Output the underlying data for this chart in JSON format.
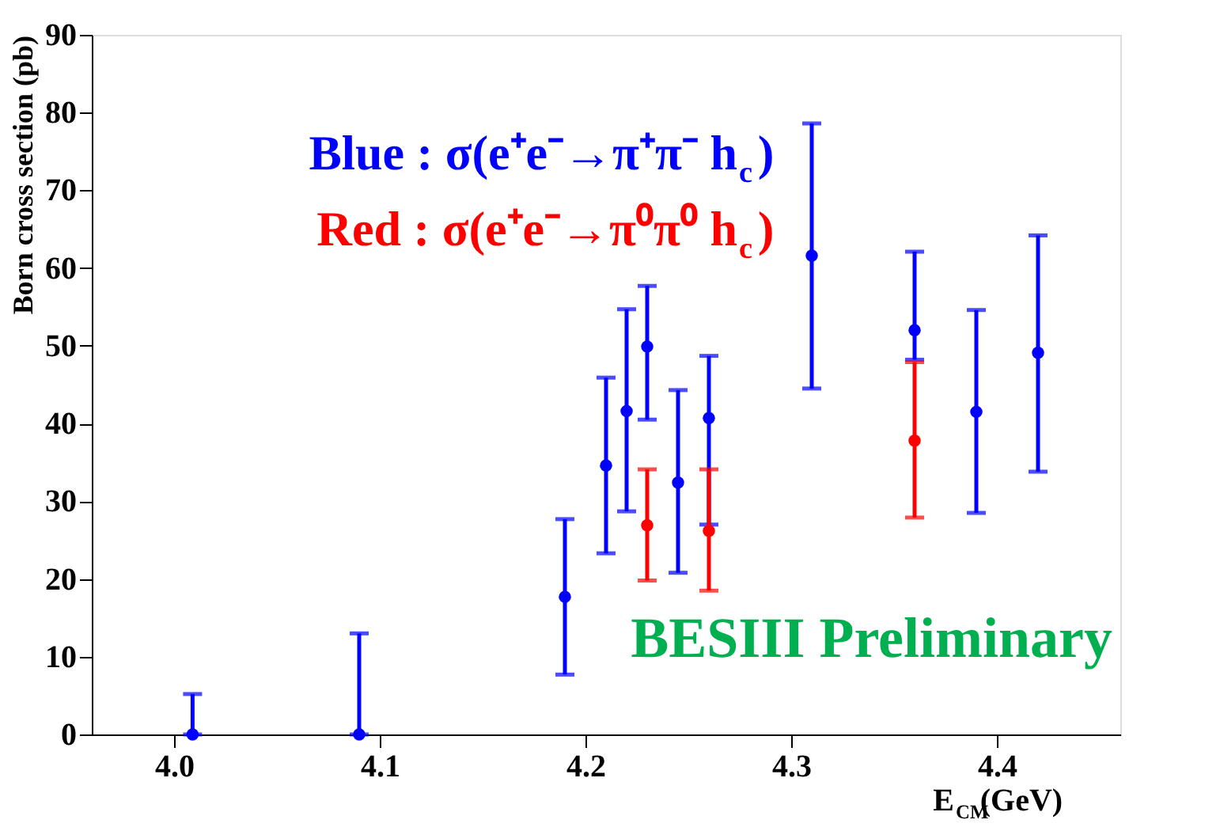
{
  "chart_data": {
    "type": "scatter",
    "xlabel": "E$_{CM}$(GeV)",
    "ylabel": "Born cross section (pb)",
    "xlim": [
      3.96,
      4.46
    ],
    "ylim": [
      0,
      90
    ],
    "xticks": [
      {
        "value": 4.0,
        "label": "4.0"
      },
      {
        "value": 4.1,
        "label": "4.1"
      },
      {
        "value": 4.2,
        "label": "4.2"
      },
      {
        "value": 4.3,
        "label": "4.3"
      },
      {
        "value": 4.4,
        "label": "4.4"
      }
    ],
    "yticks": [
      0,
      10,
      20,
      30,
      40,
      50,
      60,
      70,
      80,
      90
    ],
    "grid": false,
    "legend": "top left",
    "marker": "circle",
    "series": [
      {
        "name": "Blue : σ(e⁺e⁻→π⁺π⁻ h$_{c}$)",
        "color": "#0000ff",
        "x": [
          4.009,
          4.09,
          4.19,
          4.21,
          4.22,
          4.23,
          4.245,
          4.26,
          4.31,
          4.36,
          4.39,
          4.42
        ],
        "values": [
          0,
          0,
          17.7,
          34.6,
          41.6,
          49.9,
          32.4,
          40.7,
          61.6,
          52.0,
          41.5,
          49.1
        ],
        "errors": [
          [
            0,
            5.2
          ],
          [
            0,
            13
          ],
          [
            7.7,
            27.7
          ],
          [
            23.3,
            45.9
          ],
          [
            28.7,
            54.7
          ],
          [
            40.5,
            57.7
          ],
          [
            20.8,
            44.3
          ],
          [
            27,
            48.7
          ],
          [
            44.5,
            78.6
          ],
          [
            48.2,
            62.1
          ],
          [
            28.5,
            54.6
          ],
          [
            33.8,
            64.2
          ]
        ]
      },
      {
        "name": "Red  : σ(e⁺e⁻→π⁰π⁰ h$_{c}$)",
        "color": "#ff0000",
        "x": [
          4.23,
          4.26,
          4.36
        ],
        "values": [
          26.9,
          26.2,
          37.8
        ],
        "errors": [
          [
            19.8,
            34.1
          ],
          [
            18.5,
            34.1
          ],
          [
            27.9,
            47.9
          ]
        ]
      }
    ],
    "annotations": [
      "BESIII Preliminary"
    ]
  }
}
